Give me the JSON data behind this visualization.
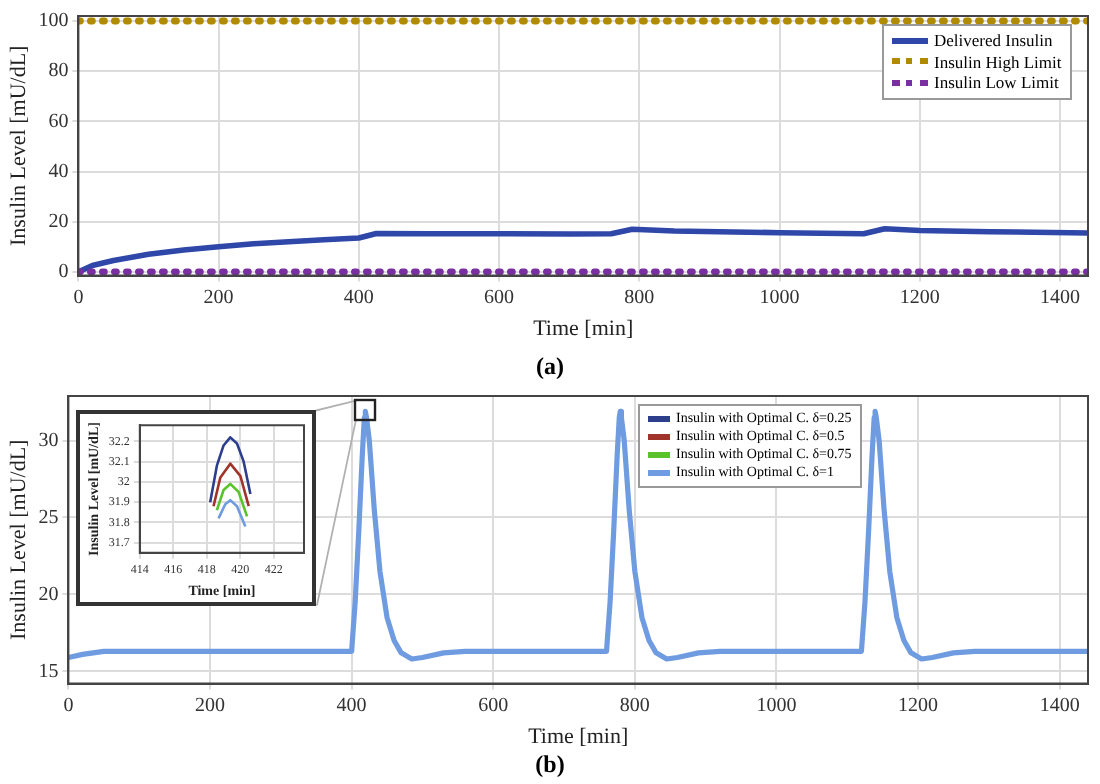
{
  "chart_data": [
    {
      "type": "line",
      "xlabel": "Time [min]",
      "ylabel": "Insulin Level [mU/dL]",
      "annotations": [
        "(a)"
      ],
      "xlim": [
        0,
        1440
      ],
      "xticks": [
        0,
        200,
        400,
        600,
        800,
        1000,
        1200,
        1400
      ],
      "ylim": [
        -1.5,
        102
      ],
      "yticks": [
        0,
        20,
        40,
        60,
        80,
        100
      ],
      "grid": true,
      "legend": "top right",
      "series": [
        {
          "name": "Delivered Insulin",
          "color": "#2e47a8",
          "x": [
            0,
            20,
            50,
            100,
            150,
            200,
            250,
            300,
            350,
            400,
            425,
            500,
            600,
            700,
            760,
            790,
            850,
            1000,
            1120,
            1150,
            1200,
            1300,
            1440
          ],
          "values": [
            0,
            2.5,
            4.5,
            7,
            8.7,
            10,
            11.2,
            12,
            12.8,
            13.5,
            15.3,
            15.2,
            15.2,
            15.1,
            15.2,
            17,
            16.3,
            15.6,
            15.2,
            17.2,
            16.5,
            16,
            15.5
          ]
        },
        {
          "name": "Insulin High Limit",
          "color": "#b08a00",
          "line_style": "dotted",
          "x": [
            0,
            1440
          ],
          "values": [
            100,
            100
          ]
        },
        {
          "name": "Insulin Low Limit",
          "color": "#7a2fa0",
          "line_style": "dotted",
          "x": [
            0,
            1440
          ],
          "values": [
            0,
            0
          ]
        }
      ]
    },
    {
      "type": "line",
      "xlabel": "Time [min]",
      "ylabel": "Insulin Level [mU/dL]",
      "annotations": [
        "(b)"
      ],
      "xlim": [
        0,
        1440
      ],
      "xticks": [
        0,
        200,
        400,
        600,
        800,
        1000,
        1200,
        1400
      ],
      "ylim": [
        14.2,
        32.9
      ],
      "yticks": [
        15,
        20,
        25,
        30
      ],
      "grid": true,
      "legend": "top right",
      "x": [
        0,
        20,
        50,
        100,
        400,
        405,
        410,
        415,
        418,
        419.4,
        421,
        425,
        432,
        440,
        450,
        460,
        470,
        485,
        500,
        530,
        560,
        760,
        765,
        770,
        775,
        778,
        779.4,
        781,
        785,
        792,
        800,
        810,
        820,
        830,
        845,
        860,
        890,
        920,
        1120,
        1125,
        1130,
        1135,
        1138,
        1139.4,
        1141,
        1145,
        1152,
        1160,
        1170,
        1180,
        1190,
        1205,
        1220,
        1250,
        1280,
        1440
      ],
      "series": [
        {
          "name": "Insulin with Optimal C. δ=0.25",
          "color": "#2c3e8c",
          "values": [
            null,
            null,
            null,
            null,
            null,
            null,
            null,
            null,
            null,
            null,
            null,
            null,
            null,
            null,
            null,
            null,
            null,
            null,
            null,
            null,
            null,
            null,
            null,
            null,
            null,
            null,
            null,
            null,
            null,
            null,
            null,
            null,
            null,
            null,
            null,
            null,
            null,
            null,
            null,
            null,
            null,
            null,
            null,
            null,
            null,
            null,
            null,
            null,
            null,
            null,
            null,
            null,
            null,
            null,
            null,
            null
          ]
        },
        {
          "name": "Insulin with Optimal C. δ=0.5",
          "color": "#a0342a",
          "values": [
            null,
            null,
            null,
            null,
            null,
            null,
            null,
            null,
            null,
            null,
            null,
            null,
            null,
            null,
            null,
            null,
            null,
            null,
            null,
            null,
            null,
            null,
            null,
            null,
            null,
            null,
            null,
            null,
            null,
            null,
            null,
            null,
            null,
            null,
            null,
            null,
            null,
            null,
            null,
            null,
            null,
            null,
            null,
            null,
            null,
            null,
            null,
            null,
            null,
            null,
            null,
            null,
            null,
            null,
            null,
            null
          ]
        },
        {
          "name": "Insulin with Optimal C. δ=0.75",
          "color": "#5ac22a",
          "values": [
            null,
            null,
            null,
            null,
            null,
            null,
            null,
            null,
            null,
            null,
            null,
            null,
            null,
            null,
            null,
            null,
            null,
            null,
            null,
            null,
            null,
            null,
            null,
            null,
            null,
            null,
            null,
            null,
            null,
            null,
            null,
            null,
            null,
            null,
            null,
            null,
            null,
            null,
            null,
            null,
            null,
            null,
            null,
            null,
            null,
            null,
            null,
            null,
            null,
            null,
            null,
            null,
            null,
            null,
            null,
            null
          ]
        },
        {
          "name": "Insulin with Optimal C. δ=1",
          "color": "#6f9be0",
          "values": [
            15.9,
            16.1,
            16.3,
            16.3,
            16.3,
            19.5,
            24,
            29,
            31.5,
            31.9,
            31.5,
            30,
            25.5,
            21.5,
            18.5,
            17,
            16.2,
            15.8,
            15.9,
            16.2,
            16.3,
            16.3,
            19.5,
            24,
            29,
            31.5,
            31.9,
            31.5,
            30,
            25.5,
            21.5,
            18.5,
            17,
            16.2,
            15.8,
            15.9,
            16.2,
            16.3,
            16.3,
            19.5,
            24,
            29,
            31.5,
            31.9,
            31.5,
            30,
            25.5,
            21.5,
            18.5,
            17,
            16.2,
            15.8,
            15.9,
            16.2,
            16.3,
            16.3
          ]
        }
      ]
    },
    {
      "type": "line",
      "xlabel": "Time [min]",
      "ylabel": "Insulin Level [mU/dL]",
      "xlim": [
        414,
        423.8
      ],
      "xticks": [
        414,
        416,
        418,
        420,
        422
      ],
      "ylim": [
        31.65,
        32.28
      ],
      "yticks": [
        31.7,
        31.8,
        31.9,
        32,
        32.1,
        32.2
      ],
      "grid": true,
      "series": [
        {
          "color": "#2c3e8c",
          "x": [
            418.2,
            418.6,
            419,
            419.4,
            419.8,
            420.2,
            420.6
          ],
          "values": [
            31.9,
            32.08,
            32.18,
            32.22,
            32.19,
            32.1,
            31.94
          ]
        },
        {
          "color": "#a0342a",
          "x": [
            418.4,
            418.8,
            419.4,
            420,
            420.5
          ],
          "values": [
            31.88,
            32.02,
            32.09,
            32.03,
            31.88
          ]
        },
        {
          "color": "#5ac22a",
          "x": [
            418.6,
            419,
            419.4,
            419.9,
            420.4
          ],
          "values": [
            31.86,
            31.96,
            31.99,
            31.95,
            31.83
          ]
        },
        {
          "color": "#6f9be0",
          "x": [
            418.7,
            419.1,
            419.4,
            419.8,
            420.3
          ],
          "values": [
            31.82,
            31.89,
            31.91,
            31.88,
            31.78
          ]
        }
      ]
    }
  ]
}
